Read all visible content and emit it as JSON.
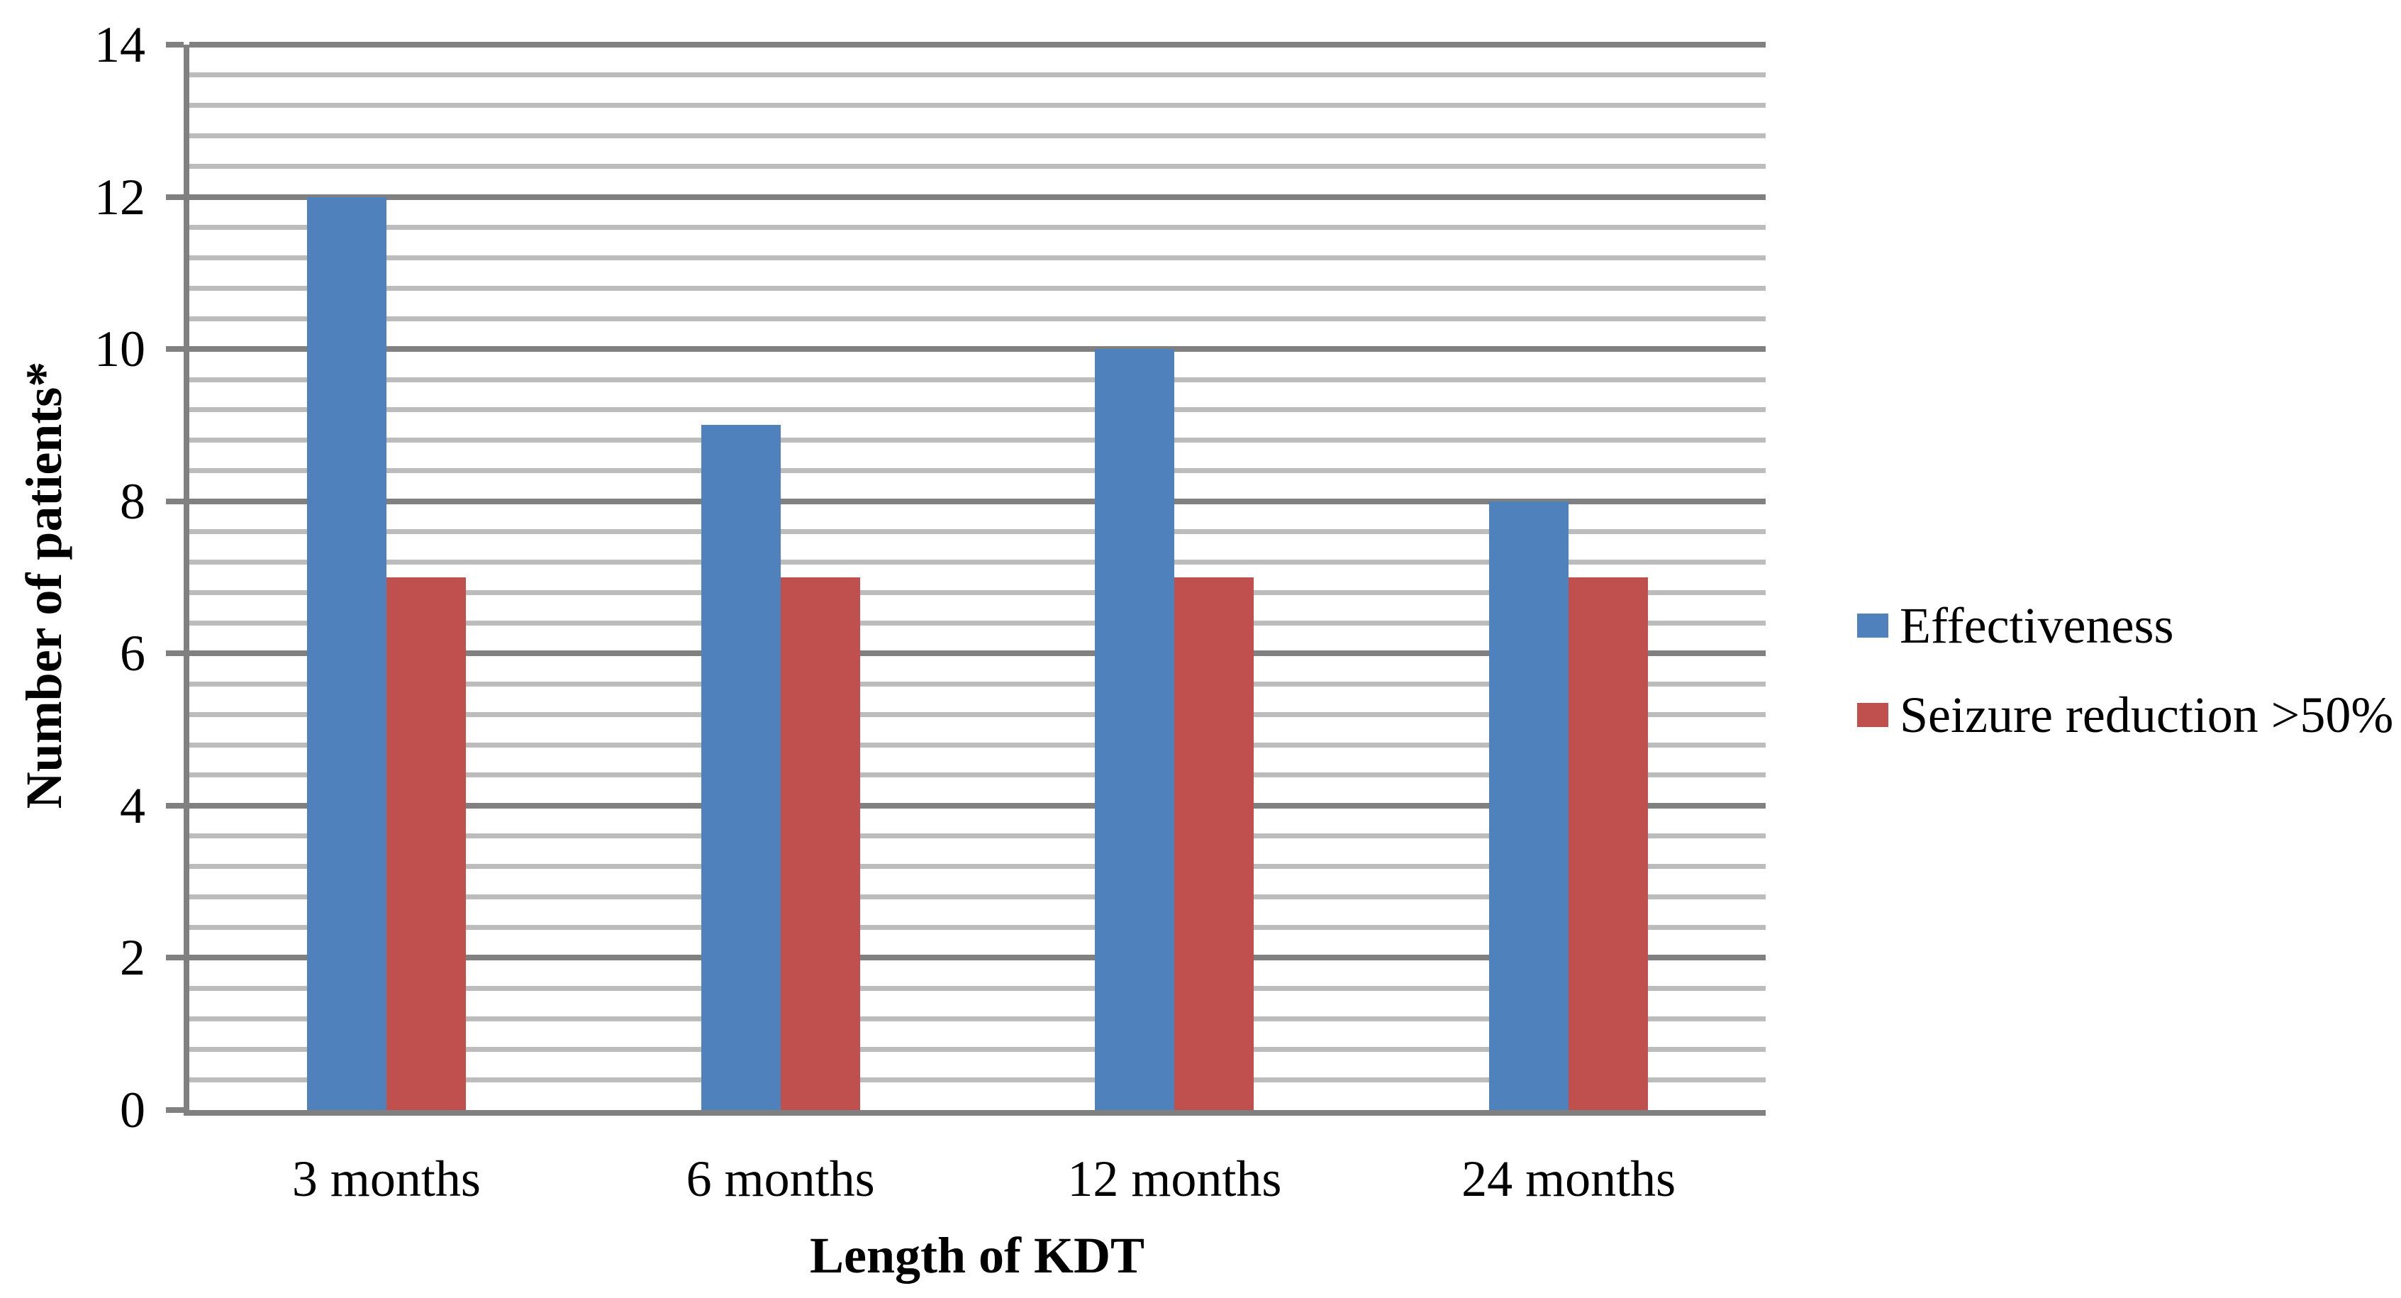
{
  "chart_data": {
    "type": "bar",
    "categories": [
      "3 months",
      "6 months",
      "12 months",
      "24 months"
    ],
    "series": [
      {
        "name": "Effectiveness",
        "color": "#4F81BD",
        "values": [
          12,
          9,
          10,
          8
        ]
      },
      {
        "name": "Seizure reduction >50%",
        "color": "#C0504D",
        "values": [
          7,
          7,
          7,
          7
        ]
      }
    ],
    "xlabel": "Length of KDT",
    "ylabel": "Number of patients*",
    "ylim": [
      0,
      14
    ],
    "yticks": [
      0,
      2,
      4,
      6,
      8,
      10,
      12,
      14
    ],
    "minor_gridline_step": 0.4,
    "grid": {
      "major": true,
      "minor": true
    },
    "legend_position": "right",
    "colors": {
      "axis_line": "#808080",
      "major_gridline": "#808080",
      "minor_gridline": "#BCBCBC",
      "text": "#000000",
      "background": "#FFFFFF"
    }
  }
}
